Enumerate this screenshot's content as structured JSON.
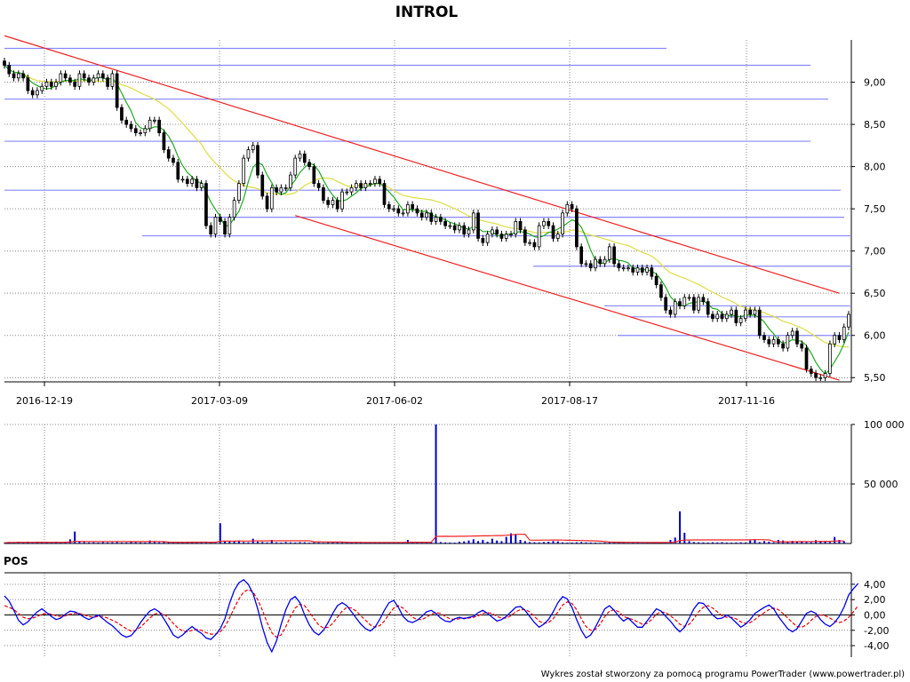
{
  "title": "INTROL",
  "footer": "Wykres został stworzony za pomocą programu PowerTrader (www.powertrader.pl)",
  "colors": {
    "candle": "#000000",
    "hlines": "#8888ff",
    "channel": "#ee2222",
    "ma_fast": "#22aa22",
    "ma_slow": "#dddd44",
    "volume": "#0000cc",
    "volume_avg": "#ee2222",
    "pos_line": "#0000ee",
    "pos_signal": "#ee0000",
    "grid": "#888888"
  },
  "chart_data": [
    {
      "id": "price",
      "type": "candlestick",
      "title": "INTROL",
      "x_tick_labels": [
        "2016-12-19",
        "2017-03-09",
        "2017-06-02",
        "2017-08-17",
        "2017-11-16"
      ],
      "y_tick_labels": [
        "9,00",
        "8,50",
        "8,00",
        "7,50",
        "7,00",
        "6,50",
        "6,00",
        "5,50"
      ],
      "ylim": [
        5.45,
        9.5
      ],
      "grid": true,
      "horizontal_levels": [
        9.4,
        9.2,
        8.8,
        8.3,
        7.72,
        7.4,
        7.18,
        6.82,
        6.35,
        6.22,
        6.0
      ],
      "channel_upper": {
        "from": [
          0,
          9.55
        ],
        "to": [
          178,
          6.5
        ]
      },
      "channel_lower": {
        "from": [
          62,
          7.42
        ],
        "to": [
          178,
          5.47
        ]
      },
      "close": [
        9.2,
        9.1,
        9.05,
        9.1,
        9.05,
        8.9,
        8.85,
        8.9,
        8.95,
        9.0,
        8.95,
        9.0,
        9.1,
        9.05,
        9.0,
        8.95,
        9.1,
        9.05,
        9.0,
        9.05,
        9.1,
        9.05,
        8.95,
        9.1,
        8.7,
        8.55,
        8.5,
        8.45,
        8.4,
        8.4,
        8.45,
        8.55,
        8.55,
        8.4,
        8.2,
        8.1,
        8.05,
        7.85,
        7.85,
        7.8,
        7.85,
        7.75,
        7.8,
        7.3,
        7.2,
        7.4,
        7.35,
        7.2,
        7.4,
        7.6,
        7.8,
        8.1,
        8.2,
        8.25,
        7.9,
        7.65,
        7.5,
        7.75,
        7.7,
        7.75,
        7.75,
        7.9,
        8.1,
        8.15,
        8.05,
        8.0,
        7.8,
        7.75,
        7.6,
        7.55,
        7.6,
        7.5,
        7.7,
        7.7,
        7.75,
        7.8,
        7.75,
        7.8,
        7.8,
        7.85,
        7.8,
        7.55,
        7.5,
        7.5,
        7.45,
        7.45,
        7.55,
        7.5,
        7.45,
        7.4,
        7.45,
        7.35,
        7.4,
        7.35,
        7.3,
        7.3,
        7.25,
        7.3,
        7.2,
        7.25,
        7.45,
        7.15,
        7.1,
        7.2,
        7.25,
        7.2,
        7.15,
        7.2,
        7.2,
        7.35,
        7.25,
        7.1,
        7.1,
        7.05,
        7.3,
        7.35,
        7.3,
        7.15,
        7.2,
        7.45,
        7.55,
        7.5,
        7.05,
        6.85,
        6.85,
        6.8,
        6.9,
        6.85,
        6.9,
        7.05,
        6.85,
        6.8,
        6.8,
        6.8,
        6.75,
        6.8,
        6.75,
        6.8,
        6.7,
        6.6,
        6.45,
        6.3,
        6.25,
        6.4,
        6.35,
        6.45,
        6.45,
        6.3,
        6.45,
        6.4,
        6.25,
        6.2,
        6.25,
        6.2,
        6.25,
        6.3,
        6.15,
        6.2,
        6.3,
        6.25,
        6.3,
        6.0,
        5.95,
        5.9,
        5.95,
        5.9,
        5.85,
        6.0,
        6.05,
        5.9,
        5.85,
        5.6,
        5.55,
        5.5,
        5.5,
        5.55,
        5.9,
        6.0,
        5.95,
        6.1,
        6.25
      ]
    },
    {
      "id": "volume",
      "type": "bar",
      "y_tick_labels": [
        "100 000",
        "50 000"
      ],
      "ylim": [
        0,
        100000
      ],
      "grid": true,
      "values": [
        600,
        1200,
        800,
        1500,
        900,
        1100,
        700,
        1400,
        900,
        1000,
        800,
        1200,
        900,
        1300,
        3500,
        10000,
        1500,
        1200,
        900,
        1000,
        800,
        1100,
        900,
        1000,
        1200,
        800,
        900,
        1100,
        1000,
        900,
        800,
        2500,
        1200,
        1000,
        1400,
        800,
        1000,
        900,
        1200,
        1100,
        900,
        1000,
        1500,
        800,
        700,
        600,
        17000,
        2000,
        1500,
        1800,
        2500,
        1200,
        1000,
        4000,
        1500,
        1200,
        900,
        3000,
        1000,
        800,
        1200,
        900,
        800,
        1100,
        1000,
        700,
        900,
        800,
        600,
        1000,
        900,
        800,
        700,
        900,
        800,
        1100,
        700,
        1000,
        900,
        1200,
        800,
        1100,
        1000,
        900,
        1000,
        1200,
        3000,
        800,
        900,
        700,
        800,
        1000,
        100000,
        1200,
        900,
        800,
        700,
        1500,
        1800,
        2500,
        3500,
        2000,
        3000,
        1500,
        4000,
        2500,
        2000,
        5500,
        8500,
        8000,
        3000,
        2000,
        1200,
        1000,
        900,
        1200,
        1500,
        2000,
        1800,
        900,
        700,
        800,
        1000,
        1200,
        900,
        800,
        700,
        600,
        800,
        900,
        1000,
        800,
        700,
        600,
        900,
        800,
        700,
        900,
        800,
        1200,
        900,
        1000,
        3000,
        5000,
        27000,
        9000,
        2000,
        1200,
        1000,
        900,
        800,
        1000,
        900,
        1100,
        800,
        700,
        900,
        1000,
        800,
        2500,
        3500,
        1200,
        2000,
        1500,
        1000,
        3000,
        2500,
        1800,
        2200,
        1500,
        2000,
        1200,
        1000,
        2800,
        2000,
        1500,
        1200,
        5500,
        3000,
        2000
      ]
    },
    {
      "id": "pos",
      "type": "line",
      "title": "POS",
      "y_tick_labels": [
        "4,00",
        "2,00",
        "0,00",
        "-2,00",
        "-4,00"
      ],
      "ylim": [
        -5.5,
        5.5
      ],
      "grid": true,
      "series": [
        {
          "key": "pos",
          "values": [
            2.5,
            1.8,
            0.6,
            -0.7,
            -1.3,
            -0.9,
            -0.2,
            0.4,
            0.8,
            0.3,
            -0.2,
            -0.6,
            -0.4,
            0.1,
            0.5,
            0.4,
            0.1,
            -0.3,
            -0.6,
            -0.3,
            0.0,
            -0.5,
            -1.0,
            -1.4,
            -2.0,
            -2.6,
            -2.9,
            -2.7,
            -2.0,
            -1.0,
            -0.2,
            0.5,
            0.8,
            0.4,
            -0.5,
            -1.5,
            -2.6,
            -3.0,
            -2.6,
            -2.0,
            -1.5,
            -2.0,
            -2.4,
            -3.0,
            -3.2,
            -2.6,
            -1.8,
            -0.5,
            1.5,
            3.2,
            4.2,
            4.6,
            4.0,
            2.8,
            0.8,
            -1.6,
            -3.6,
            -4.8,
            -3.4,
            -1.2,
            0.7,
            2.0,
            2.4,
            1.6,
            0.0,
            -1.3,
            -2.2,
            -2.6,
            -2.0,
            -1.0,
            0.2,
            1.2,
            1.6,
            1.2,
            0.4,
            -0.4,
            -1.2,
            -1.8,
            -2.1,
            -1.6,
            -0.6,
            0.6,
            1.6,
            1.9,
            1.0,
            -0.2,
            -0.8,
            -1.0,
            -0.7,
            -0.2,
            0.4,
            0.6,
            0.2,
            -0.4,
            -0.8,
            -0.9,
            -0.5,
            -0.3,
            -0.5,
            -0.3,
            -0.2,
            0.3,
            0.6,
            0.2,
            -0.3,
            -0.8,
            -0.6,
            -0.2,
            0.4,
            1.0,
            1.1,
            0.6,
            -0.2,
            -1.0,
            -1.6,
            -1.2,
            -0.6,
            0.4,
            1.6,
            2.4,
            2.1,
            1.0,
            -0.6,
            -2.0,
            -3.0,
            -2.6,
            -1.6,
            -0.4,
            0.8,
            1.2,
            0.6,
            -0.2,
            -0.8,
            -0.4,
            -1.0,
            -1.6,
            -1.6,
            -0.8,
            0.0,
            0.8,
            0.5,
            -0.2,
            -0.8,
            -1.6,
            -2.2,
            -1.6,
            -0.4,
            0.8,
            1.6,
            1.5,
            0.8,
            0.0,
            -0.5,
            -0.4,
            0.0,
            -0.4,
            -1.0,
            -1.6,
            -1.2,
            -0.6,
            0.2,
            0.6,
            1.0,
            1.3,
            0.8,
            -0.2,
            -1.0,
            -1.8,
            -2.2,
            -1.8,
            -0.8,
            0.2,
            0.5,
            0.2,
            -0.6,
            -1.2,
            -1.5,
            -1.0,
            -0.2,
            1.0,
            2.6,
            3.4,
            4.1
          ]
        },
        {
          "key": "signal",
          "values": [
            1.2,
            1.0,
            0.7,
            0.2,
            -0.3,
            -0.5,
            -0.4,
            -0.2,
            0.1,
            0.2,
            0.1,
            -0.1,
            -0.2,
            -0.1,
            0.1,
            0.2,
            0.2,
            0.0,
            -0.2,
            -0.3,
            -0.2,
            -0.2,
            -0.4,
            -0.7,
            -1.0,
            -1.4,
            -1.8,
            -2.1,
            -2.0,
            -1.6,
            -1.0,
            -0.4,
            0.1,
            0.3,
            0.1,
            -0.4,
            -1.1,
            -1.7,
            -2.1,
            -2.2,
            -2.0,
            -1.9,
            -2.0,
            -2.3,
            -2.5,
            -2.5,
            -2.2,
            -1.5,
            -0.4,
            0.9,
            2.1,
            3.0,
            3.3,
            3.0,
            2.0,
            0.6,
            -1.0,
            -2.3,
            -2.9,
            -2.6,
            -1.5,
            -0.2,
            0.9,
            1.4,
            1.2,
            0.4,
            -0.5,
            -1.3,
            -1.7,
            -1.6,
            -1.1,
            -0.3,
            0.5,
            1.0,
            0.9,
            0.5,
            -0.1,
            -0.7,
            -1.3,
            -1.6,
            -1.4,
            -0.8,
            0.1,
            0.9,
            1.2,
            0.9,
            0.3,
            -0.3,
            -0.6,
            -0.6,
            -0.3,
            0.1,
            0.3,
            0.2,
            -0.2,
            -0.5,
            -0.6,
            -0.5,
            -0.4,
            -0.4,
            -0.3,
            -0.1,
            0.2,
            0.3,
            0.2,
            -0.2,
            -0.4,
            -0.4,
            -0.1,
            0.4,
            0.7,
            0.7,
            0.4,
            -0.2,
            -0.8,
            -1.1,
            -1.0,
            -0.5,
            0.4,
            1.3,
            1.7,
            1.5,
            0.7,
            -0.5,
            -1.5,
            -2.0,
            -1.9,
            -1.2,
            -0.2,
            0.5,
            0.7,
            0.4,
            -0.2,
            -0.4,
            -0.6,
            -0.9,
            -1.2,
            -1.1,
            -0.6,
            0.1,
            0.4,
            0.3,
            -0.1,
            -0.6,
            -1.2,
            -1.5,
            -1.2,
            -0.5,
            0.4,
            1.0,
            1.2,
            0.9,
            0.4,
            -0.1,
            -0.3,
            -0.3,
            -0.5,
            -0.9,
            -1.1,
            -1.0,
            -0.6,
            -0.1,
            0.3,
            0.7,
            0.9,
            0.7,
            0.2,
            -0.4,
            -1.0,
            -1.5,
            -1.6,
            -1.3,
            -0.7,
            -0.2,
            0.0,
            -0.1,
            -0.4,
            -0.8,
            -1.0,
            -0.8,
            -0.3,
            0.4,
            1.2
          ]
        }
      ]
    }
  ]
}
